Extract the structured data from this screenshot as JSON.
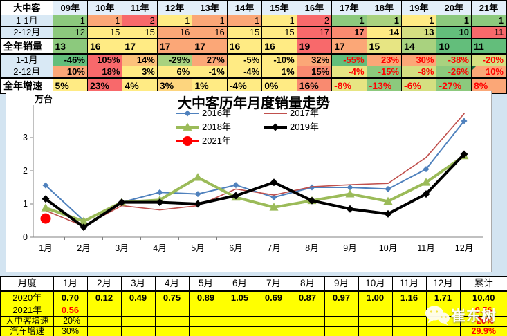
{
  "page": {
    "background": "#D3E4F1"
  },
  "top_table": {
    "corner_label": "大中客",
    "years": [
      "09年",
      "10年",
      "11年",
      "12年",
      "13年",
      "14年",
      "15年",
      "16年",
      "17年",
      "18年",
      "19年",
      "20年",
      "21年"
    ],
    "palette": {
      "G": "#63BE7B",
      "G2": "#8CC97D",
      "LG": "#A9D27F",
      "YG": "#D5DF81",
      "PY": "#E7E583",
      "Y": "#FFEB84",
      "YO": "#FDD57E",
      "LO": "#FCC17B",
      "O": "#FBA777",
      "SO": "#F98A70",
      "R": "#F8696B"
    },
    "rows": [
      {
        "label": "1-1月",
        "label_style": "blue",
        "align": "right",
        "thick_top": false,
        "big": false,
        "cells": [
          [
            "1",
            "G2",
            0
          ],
          [
            "1",
            "O",
            0
          ],
          [
            "2",
            "R",
            0
          ],
          [
            "1",
            "Y",
            0
          ],
          [
            "1",
            "O",
            0
          ],
          [
            "1",
            "O",
            0
          ],
          [
            "1",
            "Y",
            0
          ],
          [
            "2",
            "R",
            0
          ],
          [
            "1",
            "G2",
            1
          ],
          [
            "1",
            "LG",
            1
          ],
          [
            "1",
            "Y",
            1
          ],
          [
            "1",
            "G2",
            1
          ],
          [
            "1",
            "G2",
            1
          ]
        ]
      },
      {
        "label": "2-12月",
        "label_style": "blue",
        "align": "right",
        "thick_top": false,
        "big": false,
        "cells": [
          [
            "12",
            "G2",
            0
          ],
          [
            "15",
            "Y",
            0
          ],
          [
            "15",
            "Y",
            0
          ],
          [
            "16",
            "O",
            0
          ],
          [
            "16",
            "O",
            0
          ],
          [
            "15",
            "Y",
            0
          ],
          [
            "15",
            "Y",
            0
          ],
          [
            "17",
            "R",
            0
          ],
          [
            "17",
            "SO",
            1
          ],
          [
            "14",
            "Y",
            1
          ],
          [
            "13",
            "YG",
            1
          ],
          [
            "10",
            "G",
            1
          ],
          [
            "11",
            "R",
            1
          ]
        ]
      },
      {
        "label": "全年销量",
        "label_style": "white",
        "align": "left",
        "thick_top": true,
        "thick_bottom": true,
        "big": true,
        "cells": [
          [
            "13",
            "G2",
            1
          ],
          [
            "16",
            "Y",
            1
          ],
          [
            "17",
            "Y",
            1
          ],
          [
            "17",
            "O",
            1
          ],
          [
            "17",
            "O",
            1
          ],
          [
            "16",
            "Y",
            1
          ],
          [
            "16",
            "Y",
            1
          ],
          [
            "19",
            "R",
            1
          ],
          [
            "17",
            "O",
            1
          ],
          [
            "15",
            "PY",
            1
          ],
          [
            "14",
            "LG",
            1
          ],
          [
            "10",
            "G",
            1
          ],
          [
            "11",
            "G",
            1
          ]
        ]
      },
      {
        "label": "1-1月",
        "label_style": "blue",
        "align": "right",
        "thick_top": false,
        "big": false,
        "cells": [
          [
            "-46%",
            "G",
            1
          ],
          [
            "105%",
            "R",
            1
          ],
          [
            "14%",
            "LO",
            1
          ],
          [
            "-29%",
            "LG",
            1
          ],
          [
            "27%",
            "O",
            1
          ],
          [
            "-5%",
            "Y",
            1
          ],
          [
            "-10%",
            "Y",
            1
          ],
          [
            "32%",
            "O",
            1
          ],
          [
            "-55%",
            "G",
            2
          ],
          [
            "23%",
            "O",
            2
          ],
          [
            "30%",
            "O",
            2
          ],
          [
            "-38%",
            "LG",
            2
          ],
          [
            "-20%",
            "YG",
            2
          ]
        ]
      },
      {
        "label": "2-12月",
        "label_style": "blue",
        "align": "right",
        "thick_top": false,
        "big": false,
        "cells": [
          [
            "10%",
            "O",
            1
          ],
          [
            "18%",
            "R",
            1
          ],
          [
            "3%",
            "Y",
            1
          ],
          [
            "6%",
            "Y",
            1
          ],
          [
            "-1%",
            "Y",
            1
          ],
          [
            "-4%",
            "Y",
            1
          ],
          [
            "1%",
            "Y",
            1
          ],
          [
            "15%",
            "SO",
            1
          ],
          [
            "-4%",
            "PY",
            2
          ],
          [
            "-15%",
            "G2",
            2
          ],
          [
            "-8%",
            "YG",
            2
          ],
          [
            "-26%",
            "G2",
            2
          ],
          [
            "10%",
            "O",
            2,
            "tri"
          ]
        ]
      },
      {
        "label": "全年增速",
        "label_style": "white",
        "align": "left",
        "thick_top": true,
        "big": true,
        "cells": [
          [
            "5%",
            "Y",
            1
          ],
          [
            "23%",
            "R",
            1
          ],
          [
            "4%",
            "Y",
            1
          ],
          [
            "3%",
            "YO",
            1
          ],
          [
            "1%",
            "Y",
            1
          ],
          [
            "-4%",
            "Y",
            1
          ],
          [
            "0%",
            "Y",
            1
          ],
          [
            "16%",
            "SO",
            1
          ],
          [
            "-8%",
            "PY",
            2
          ],
          [
            "-13%",
            "G2",
            2
          ],
          [
            "-6%",
            "YG",
            2
          ],
          [
            "-27%",
            "G2",
            2
          ],
          [
            "8%",
            "O",
            2
          ]
        ]
      }
    ]
  },
  "chart_data": {
    "type": "line",
    "title": "大中客历年月度销量走势",
    "y_unit_label": "万台",
    "categories": [
      "1月",
      "2月",
      "3月",
      "4月",
      "5月",
      "6月",
      "7月",
      "8月",
      "9月",
      "10月",
      "11月",
      "12月"
    ],
    "ylim": [
      0,
      4
    ],
    "yticks": [
      0,
      1,
      2,
      3
    ],
    "grid": false,
    "legend_position": "top-center",
    "series": [
      {
        "name": "2016年",
        "color": "#4F81BD",
        "marker": "diamond",
        "line_width": 2,
        "values": [
          1.56,
          0.5,
          1.05,
          1.35,
          1.3,
          1.57,
          1.2,
          1.5,
          1.5,
          1.45,
          2.05,
          3.5
        ]
      },
      {
        "name": "2017年",
        "color": "#C0504D",
        "marker": "none",
        "line_width": 1.6,
        "values": [
          0.8,
          0.33,
          0.95,
          0.82,
          0.95,
          1.45,
          1.27,
          1.52,
          1.58,
          1.62,
          2.4,
          3.72
        ]
      },
      {
        "name": "2018年",
        "color": "#9BBB59",
        "marker": "triangle",
        "line_width": 4,
        "values": [
          0.88,
          0.48,
          1.05,
          1.12,
          1.8,
          1.2,
          0.9,
          1.1,
          1.3,
          1.08,
          1.65,
          2.45
        ]
      },
      {
        "name": "2019年",
        "color": "#000000",
        "marker": "diamond",
        "line_width": 4,
        "values": [
          1.15,
          0.3,
          1.05,
          1.05,
          1.0,
          1.25,
          1.65,
          1.1,
          0.85,
          0.7,
          1.3,
          2.5
        ]
      },
      {
        "name": "2021年",
        "color": "#FF0000",
        "marker": "circle",
        "line_width": 4,
        "values": [
          0.56
        ]
      }
    ]
  },
  "bottom_table": {
    "headers": [
      "月度",
      "1月",
      "2月",
      "3月",
      "4月",
      "5月",
      "6月",
      "7月",
      "8月",
      "9月",
      "10月",
      "11月",
      "12月",
      "累计"
    ],
    "rows": [
      {
        "label": "2020年",
        "height": "h18",
        "cells": [
          [
            "0.70",
            1
          ],
          [
            "0.12",
            1
          ],
          [
            "0.49",
            1
          ],
          [
            "0.75",
            1
          ],
          [
            "0.89",
            1
          ],
          [
            "1.05",
            1
          ],
          [
            "0.69",
            1
          ],
          [
            "0.87",
            1
          ],
          [
            "0.97",
            1
          ],
          [
            "1.00",
            1
          ],
          [
            "1.16",
            1
          ],
          [
            "1.71",
            1
          ],
          [
            "10.40",
            1
          ]
        ]
      },
      {
        "label": "2021年",
        "height": "h18",
        "cells": [
          [
            "0.56",
            2
          ],
          [
            "",
            0
          ],
          [
            "",
            0
          ],
          [
            "",
            0
          ],
          [
            "",
            0
          ],
          [
            "",
            0
          ],
          [
            "",
            0
          ],
          [
            "",
            0
          ],
          [
            "",
            0
          ],
          [
            "",
            0
          ],
          [
            "",
            0
          ],
          [
            "",
            0
          ],
          [
            "0.56",
            2
          ]
        ]
      },
      {
        "label": "大中客增速",
        "height": "h15",
        "cells": [
          [
            "-20%",
            0
          ],
          [
            "",
            0
          ],
          [
            "",
            0
          ],
          [
            "",
            0
          ],
          [
            "",
            0
          ],
          [
            "",
            0
          ],
          [
            "",
            0
          ],
          [
            "",
            0
          ],
          [
            "",
            0
          ],
          [
            "",
            0
          ],
          [
            "",
            0
          ],
          [
            "",
            0
          ],
          [
            "-20%",
            2
          ]
        ]
      },
      {
        "label": "汽车增速",
        "height": "h15",
        "cells": [
          [
            "30%",
            0
          ],
          [
            "",
            0
          ],
          [
            "",
            0
          ],
          [
            "",
            0
          ],
          [
            "",
            0
          ],
          [
            "",
            0
          ],
          [
            "",
            0
          ],
          [
            "",
            0
          ],
          [
            "",
            0
          ],
          [
            "",
            0
          ],
          [
            "",
            0
          ],
          [
            "",
            0
          ],
          [
            "29.9%",
            2
          ]
        ]
      }
    ]
  },
  "watermark": {
    "text": "崔东树"
  }
}
